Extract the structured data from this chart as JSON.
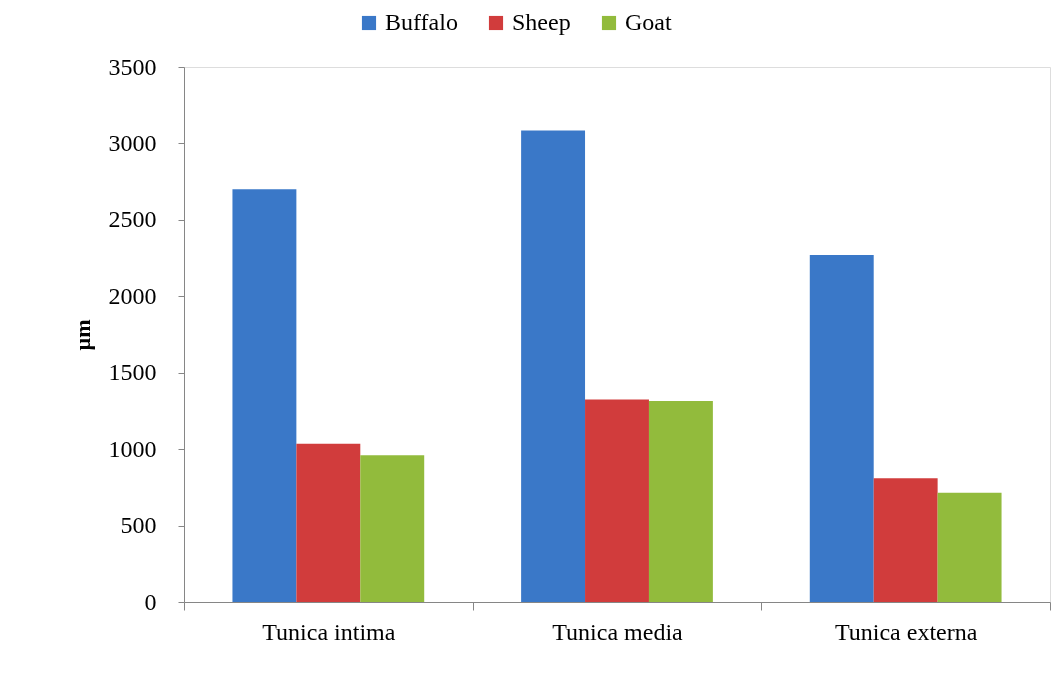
{
  "chart_data": {
    "type": "bar",
    "ylabel": "µm",
    "categories": [
      "Tunica intima",
      "Tunica media",
      "Tunica externa"
    ],
    "series": [
      {
        "name": "Buffalo",
        "color": "#3a78c8",
        "values": [
          2700,
          3085,
          2270
        ]
      },
      {
        "name": "Sheep",
        "color": "#d13c3c",
        "values": [
          1035,
          1325,
          810
        ]
      },
      {
        "name": "Goat",
        "color": "#92bb3c",
        "values": [
          960,
          1315,
          715
        ]
      }
    ],
    "ylim": [
      0,
      3500
    ],
    "yticks": [
      0,
      500,
      1000,
      1500,
      2000,
      2500,
      3000,
      3500
    ],
    "legend": "top"
  }
}
